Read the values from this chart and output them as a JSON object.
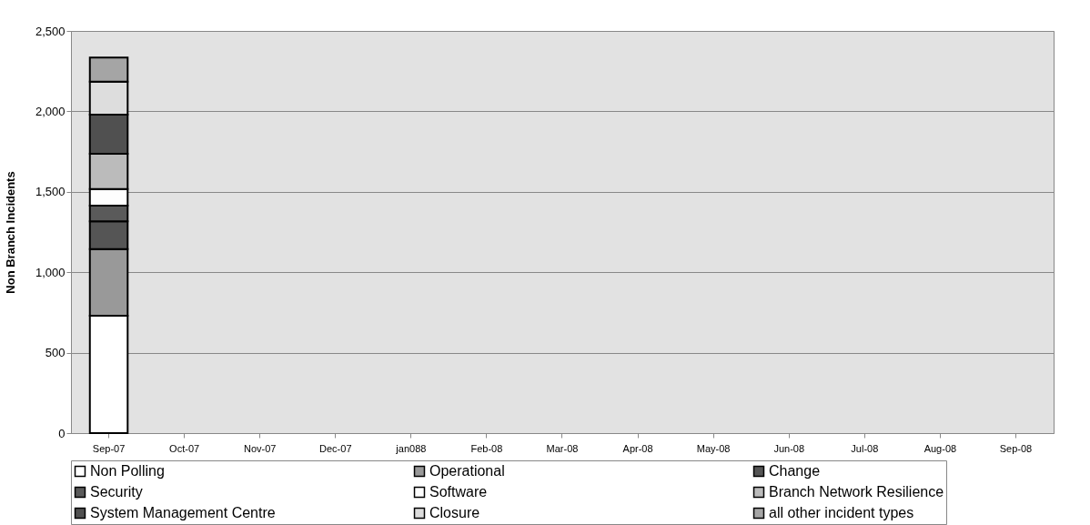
{
  "chart_data": {
    "type": "bar",
    "stacked": true,
    "ylabel": "Non Branch Incidents",
    "categories": [
      "Sep-07",
      "Oct-07",
      "Nov-07",
      "Dec-07",
      "jan088",
      "Feb-08",
      "Mar-08",
      "Apr-08",
      "May-08",
      "Jun-08",
      "Jul-08",
      "Aug-08",
      "Sep-08"
    ],
    "series": [
      {
        "name": "Non Polling",
        "color": "#ffffff",
        "values": [
          730,
          null,
          null,
          null,
          null,
          null,
          null,
          null,
          null,
          null,
          null,
          null,
          null
        ]
      },
      {
        "name": "Operational",
        "color": "#999999",
        "values": [
          414,
          null,
          null,
          null,
          null,
          null,
          null,
          null,
          null,
          null,
          null,
          null,
          null
        ]
      },
      {
        "name": "Change",
        "color": "#555555",
        "values": [
          173,
          null,
          null,
          null,
          null,
          null,
          null,
          null,
          null,
          null,
          null,
          null,
          null
        ]
      },
      {
        "name": "Security",
        "color": "#5a5a5a",
        "values": [
          97,
          null,
          null,
          null,
          null,
          null,
          null,
          null,
          null,
          null,
          null,
          null,
          null
        ]
      },
      {
        "name": "Software",
        "color": "#fefefe",
        "values": [
          103,
          null,
          null,
          null,
          null,
          null,
          null,
          null,
          null,
          null,
          null,
          null,
          null
        ]
      },
      {
        "name": "Branch Network Resilience",
        "color": "#bbbbbb",
        "values": [
          220,
          null,
          null,
          null,
          null,
          null,
          null,
          null,
          null,
          null,
          null,
          null,
          null
        ]
      },
      {
        "name": "System Management Centre",
        "color": "#505050",
        "values": [
          243,
          null,
          null,
          null,
          null,
          null,
          null,
          null,
          null,
          null,
          null,
          null,
          null
        ]
      },
      {
        "name": "Closure",
        "color": "#dddddd",
        "values": [
          205,
          null,
          null,
          null,
          null,
          null,
          null,
          null,
          null,
          null,
          null,
          null,
          null
        ]
      },
      {
        "name": "all other incident types",
        "color": "#a5a5a5",
        "values": [
          149,
          null,
          null,
          null,
          null,
          null,
          null,
          null,
          null,
          null,
          null,
          null,
          null
        ]
      }
    ],
    "ylim": [
      0,
      2500
    ],
    "yticks": [
      0,
      {
        "value": 500,
        "label": "500"
      },
      {
        "value": 1000,
        "label": "1,000"
      },
      {
        "value": 1500,
        "label": "1,500"
      },
      {
        "value": 2000,
        "label": "2,000"
      },
      {
        "value": 2500,
        "label": "2,500"
      }
    ],
    "grid": "y",
    "legend": "bottom"
  }
}
